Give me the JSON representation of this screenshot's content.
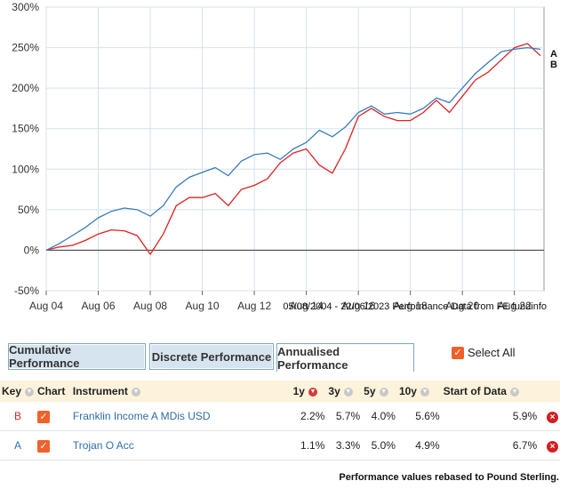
{
  "chart_data": {
    "type": "line",
    "x": [
      "Aug 04",
      "Feb 05",
      "Aug 05",
      "Feb 06",
      "Aug 06",
      "Feb 07",
      "Aug 07",
      "Feb 08",
      "Aug 08",
      "Feb 09",
      "Aug 09",
      "Feb 10",
      "Aug 10",
      "Feb 11",
      "Aug 11",
      "Feb 12",
      "Aug 12",
      "Feb 13",
      "Aug 13",
      "Feb 14",
      "Aug 14",
      "Feb 15",
      "Aug 15",
      "Feb 16",
      "Aug 16",
      "Feb 17",
      "Aug 17",
      "Feb 18",
      "Aug 18",
      "Feb 19",
      "Aug 19",
      "Feb 20",
      "Aug 20",
      "Feb 21",
      "Aug 21",
      "Feb 22",
      "Aug 22",
      "Jan 23",
      "Jun 23"
    ],
    "series": [
      {
        "name": "A",
        "color": "#3a7bb8",
        "values": [
          0,
          8,
          18,
          28,
          40,
          48,
          52,
          50,
          42,
          55,
          78,
          90,
          96,
          102,
          92,
          110,
          118,
          120,
          112,
          125,
          133,
          148,
          140,
          152,
          170,
          178,
          168,
          170,
          168,
          175,
          188,
          182,
          200,
          218,
          232,
          245,
          248,
          250,
          248
        ]
      },
      {
        "name": "B",
        "color": "#e02020",
        "values": [
          0,
          4,
          6,
          12,
          20,
          25,
          24,
          18,
          -5,
          20,
          55,
          65,
          65,
          70,
          55,
          75,
          80,
          88,
          108,
          120,
          125,
          105,
          95,
          125,
          165,
          175,
          165,
          160,
          160,
          170,
          185,
          170,
          190,
          210,
          220,
          235,
          250,
          255,
          240
        ]
      }
    ],
    "xticks": [
      "Aug 04",
      "Aug 06",
      "Aug 08",
      "Aug 10",
      "Aug 12",
      "Aug 14",
      "Aug 16",
      "Aug 18",
      "Aug 20",
      "Aug 22"
    ],
    "yticks": [
      "300%",
      "250%",
      "200%",
      "150%",
      "100%",
      "50%",
      "0%",
      "-50%"
    ],
    "ylim": [
      -50,
      300
    ],
    "grid": true,
    "series_end_labels": [
      "A",
      "B"
    ],
    "source_note": "05/08/2004 - 22/06/2023 Performance Data from FE fundinfo"
  },
  "tabs": [
    "Cumulative Performance",
    "Discrete Performance",
    "Annualised Performance"
  ],
  "active_tab": 2,
  "select_all_label": "Select All",
  "table": {
    "headers": {
      "key": "Key",
      "chart": "Chart",
      "instrument": "Instrument",
      "y1": "1y",
      "y3": "3y",
      "y5": "5y",
      "y10": "10y",
      "start": "Start of Data"
    },
    "rows": [
      {
        "key": "B",
        "instrument": "Franklin Income A MDis USD",
        "y1": "2.2%",
        "y3": "5.7%",
        "y5": "4.0%",
        "y10": "5.6%",
        "start": "5.9%"
      },
      {
        "key": "A",
        "instrument": "Trojan O Acc",
        "y1": "1.1%",
        "y3": "3.3%",
        "y5": "5.0%",
        "y10": "4.9%",
        "start": "6.7%"
      }
    ]
  },
  "footnote": "Performance values rebased to Pound Sterling."
}
